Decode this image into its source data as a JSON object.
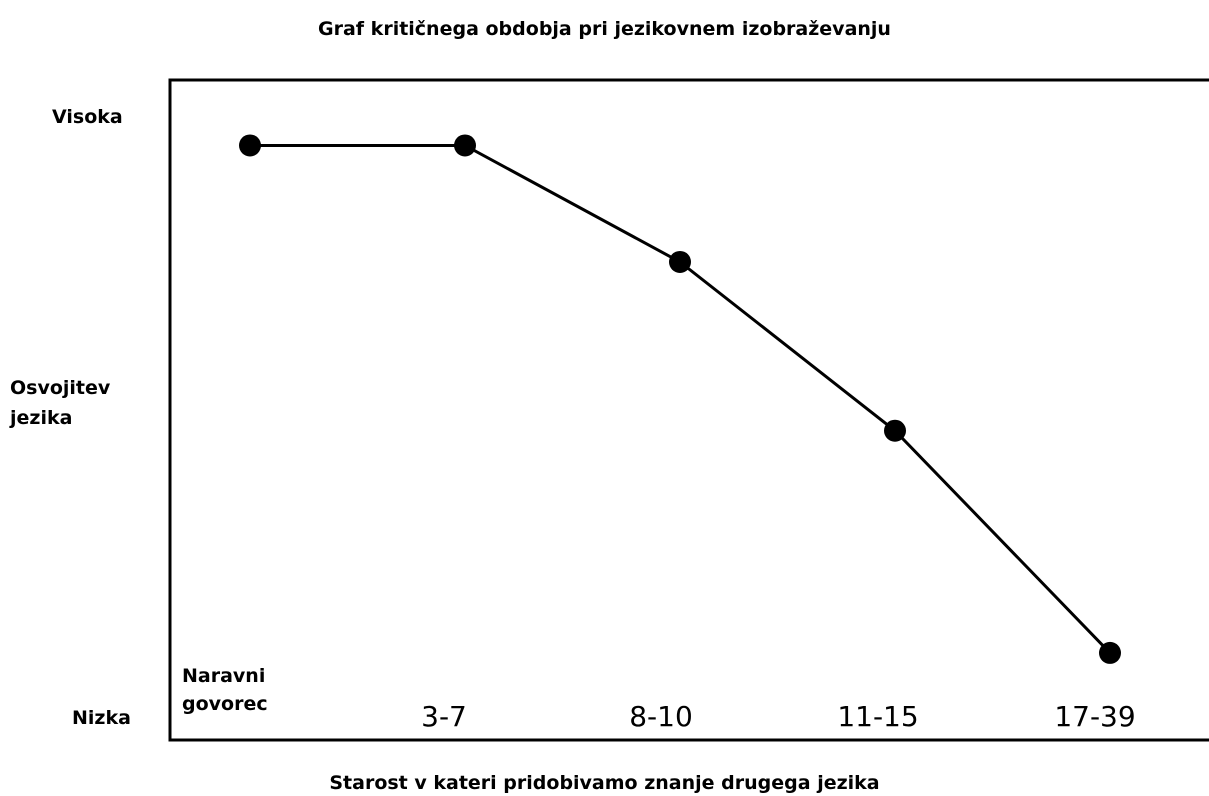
{
  "chart_data": {
    "type": "line",
    "title": "Graf kritičnega obdobja pri jezikovnem izobraževanju",
    "x_label": "Starost v kateri pridobivamo znanje drugega jezika",
    "y_label": "Osvojitev jezika",
    "categories": [
      "Naravni govorec",
      "3-7",
      "8-10",
      "11-15",
      "17-39"
    ],
    "values": [
      95.3,
      95.3,
      75.9,
      47.8,
      10.8
    ],
    "color": "#000000",
    "ylim": [
      -3.7,
      106.2
    ],
    "yticks": [
      {
        "value": 100,
        "label": "Visoka"
      },
      {
        "value": 0,
        "label": "Nizka"
      }
    ],
    "grid": false
  }
}
